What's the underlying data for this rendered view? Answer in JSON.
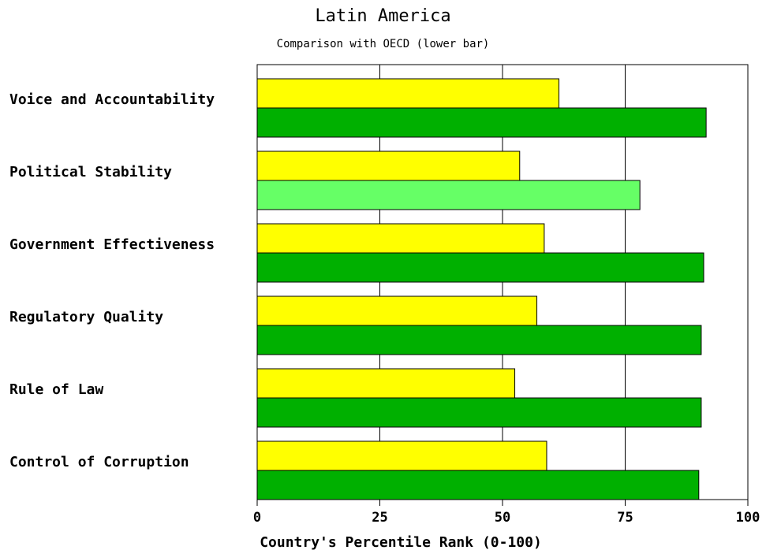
{
  "chart_data": {
    "type": "bar",
    "orientation": "horizontal",
    "title": "Latin America",
    "subtitle": "Comparison with OECD (lower bar)",
    "xlabel": "Country's Percentile Rank (0-100)",
    "xlim": [
      0,
      100
    ],
    "xticks": [
      0,
      25,
      50,
      75,
      100
    ],
    "grid": true,
    "categories": [
      "Voice and Accountability",
      "Political Stability",
      "Government Effectiveness",
      "Regulatory Quality",
      "Rule of Law",
      "Control of Corruption"
    ],
    "series": [
      {
        "values": [
          61.5,
          53.5,
          58.5,
          57,
          52.5,
          59
        ],
        "color": "#ffff00"
      },
      {
        "values": [
          91.5,
          78,
          91,
          90.5,
          90.5,
          90
        ],
        "colors": [
          "#00b000",
          "#66ff66",
          "#00b000",
          "#00b000",
          "#00b000",
          "#00b000"
        ]
      }
    ]
  }
}
